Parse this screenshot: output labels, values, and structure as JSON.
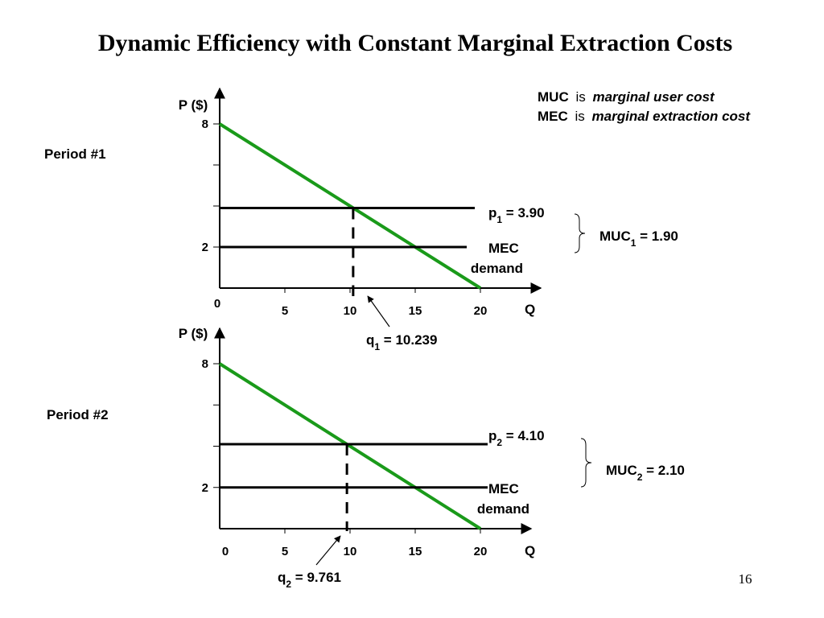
{
  "title": "Dynamic Efficiency with Constant Marginal Extraction Costs",
  "page_number": "16",
  "definitions": [
    {
      "abbr": "MUC",
      "is": "is",
      "meaning": "marginal user cost"
    },
    {
      "abbr": "MEC",
      "is": "is",
      "meaning": "marginal extraction cost"
    }
  ],
  "colors": {
    "demand": "#1a9a1a",
    "q1": "#c8501e",
    "q2": "#9b3fd6",
    "axis": "#000000"
  },
  "chart_data": [
    {
      "type": "line",
      "period_label": "Period #1",
      "ylabel": "P ($)",
      "xlabel": "Q",
      "xlim": [
        0,
        20
      ],
      "ylim": [
        0,
        8
      ],
      "x_ticks": [
        5,
        10,
        15,
        20
      ],
      "y_ticks": [
        2,
        8
      ],
      "origin_label": "0",
      "demand": {
        "name": "demand",
        "points": [
          [
            0,
            8
          ],
          [
            20,
            0
          ]
        ]
      },
      "price": {
        "label_main": "p",
        "label_sub": "1",
        "label_value": " = 3.90",
        "value": 3.9
      },
      "mec": {
        "label": "MEC",
        "value": 2
      },
      "quantity": {
        "label_main": "q",
        "label_sub": "1",
        "label_value": " = 10.239",
        "value": 10.239
      },
      "muc": {
        "label_main": "MUC",
        "label_sub": "1",
        "label_value": " = 1.90",
        "value": 1.9
      }
    },
    {
      "type": "line",
      "period_label": "Period #2",
      "ylabel": "P ($)",
      "xlabel": "Q",
      "xlim": [
        0,
        20
      ],
      "ylim": [
        0,
        8
      ],
      "x_ticks": [
        5,
        10,
        15,
        20
      ],
      "y_ticks": [
        2,
        8
      ],
      "origin_label": "0",
      "demand": {
        "name": "demand",
        "points": [
          [
            0,
            8
          ],
          [
            20,
            0
          ]
        ]
      },
      "price": {
        "label_main": "p",
        "label_sub": "2",
        "label_value": " = 4.10",
        "value": 4.1
      },
      "mec": {
        "label": "MEC",
        "value": 2
      },
      "quantity": {
        "label_main": "q",
        "label_sub": "2",
        "label_value": " = 9.761",
        "value": 9.761
      },
      "muc": {
        "label_main": "MUC",
        "label_sub": "2",
        "label_value": " = 2.10",
        "value": 2.1
      }
    }
  ]
}
